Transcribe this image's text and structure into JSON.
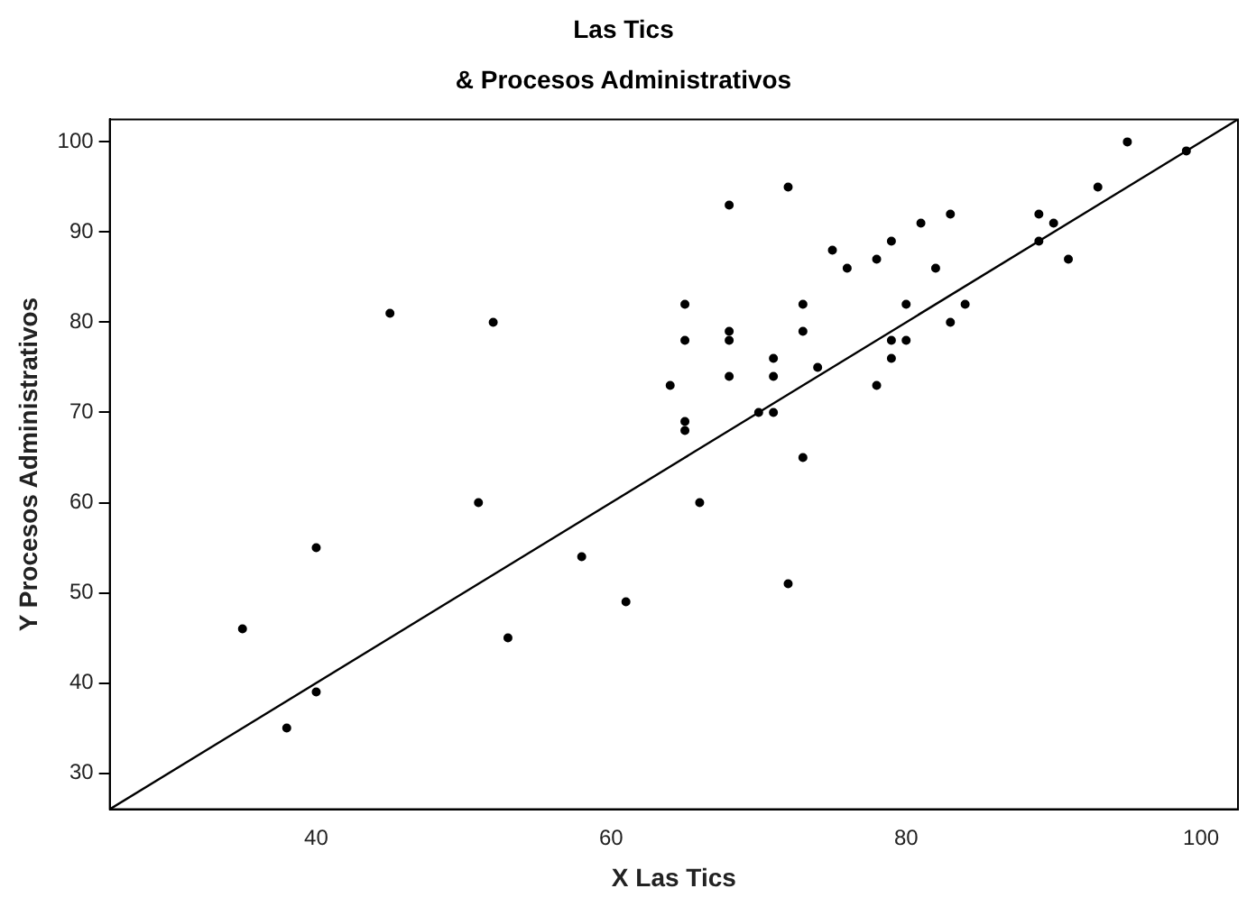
{
  "chart_data": {
    "type": "scatter",
    "title": "Las Tics",
    "subtitle": "& Procesos Administrativos",
    "xlabel": "X Las Tics",
    "ylabel": "Y Procesos Administrativos",
    "xlim": [
      26,
      102.5
    ],
    "ylim": [
      26,
      102.5
    ],
    "xticks": [
      40,
      60,
      80,
      100
    ],
    "yticks": [
      30,
      40,
      50,
      60,
      70,
      80,
      90,
      100
    ],
    "grid": false,
    "legend": false,
    "marker": "circle",
    "series": [
      {
        "type": "scatter",
        "color": "#000000",
        "x": [
          35,
          38,
          40,
          40,
          45,
          52,
          51,
          53,
          58,
          61,
          64,
          65,
          65,
          65,
          65,
          66,
          68,
          68,
          68,
          68,
          70,
          71,
          71,
          71,
          72,
          72,
          73,
          73,
          73,
          74,
          75,
          76,
          78,
          78,
          79,
          79,
          79,
          80,
          80,
          81,
          82,
          83,
          83,
          84,
          89,
          89,
          90,
          91,
          93,
          95,
          99
        ],
        "values": [
          46,
          35,
          55,
          39,
          81,
          80,
          60,
          45,
          54,
          49,
          73,
          82,
          78,
          69,
          68,
          60,
          93,
          79,
          78,
          74,
          70,
          76,
          74,
          70,
          95,
          51,
          82,
          79,
          65,
          75,
          88,
          86,
          87,
          73,
          89,
          78,
          76,
          82,
          78,
          91,
          86,
          92,
          80,
          82,
          92,
          89,
          91,
          87,
          95,
          100,
          99
        ]
      },
      {
        "type": "line",
        "color": "#000000",
        "marker": "none",
        "x": [
          26,
          102.5
        ],
        "values": [
          26,
          102.5
        ]
      }
    ]
  }
}
